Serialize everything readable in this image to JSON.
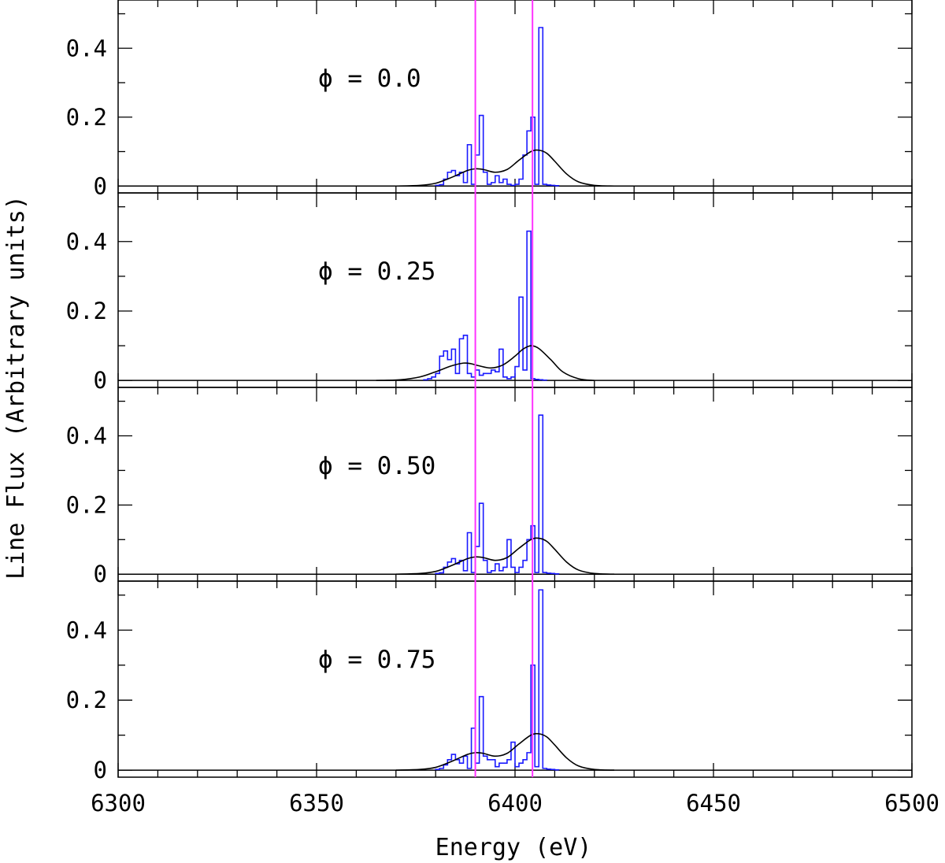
{
  "chart_data": {
    "type": "line",
    "xlabel": "Energy (eV)",
    "ylabel": "Line Flux (Arbitrary units)",
    "xlim": [
      6300,
      6500
    ],
    "ylim": [
      -0.02,
      0.54
    ],
    "x_ticks": [
      "6300",
      "6350",
      "6400",
      "6450",
      "6500"
    ],
    "y_ticks": [
      "0",
      "0.2",
      "0.4"
    ],
    "vertical_lines": [
      6390,
      6404.4
    ],
    "colors": {
      "histogram": "#1a1aff",
      "smoothed": "#000000",
      "vertical_lines": "#ff33ff"
    },
    "panels": [
      {
        "label": "ϕ = 0.0",
        "histogram": {
          "bin_width": 1,
          "x_start": 6380,
          "values": [
            0.002,
            0.004,
            0.02,
            0.04,
            0.045,
            0.03,
            0.04,
            0.01,
            0.12,
            0.005,
            0.09,
            0.205,
            0.04,
            0.005,
            0.01,
            0.03,
            0.01,
            0.02,
            0.005,
            0.002,
            0.005,
            0.02,
            0.09,
            0.16,
            0.2,
            0.005,
            0.46,
            0.005,
            0.003,
            0.002,
            0.001
          ]
        },
        "smoothed": {
          "x": [
            6370,
            6376,
            6380,
            6384,
            6388,
            6390,
            6392,
            6395,
            6398,
            6401,
            6404,
            6406,
            6408,
            6410,
            6413,
            6416,
            6420,
            6425
          ],
          "y": [
            0,
            0.002,
            0.008,
            0.025,
            0.045,
            0.05,
            0.048,
            0.04,
            0.048,
            0.075,
            0.1,
            0.104,
            0.095,
            0.072,
            0.035,
            0.012,
            0.002,
            0
          ]
        }
      },
      {
        "label": "ϕ = 0.25",
        "histogram": {
          "bin_width": 1,
          "x_start": 6377,
          "values": [
            0.002,
            0.005,
            0.01,
            0.02,
            0.07,
            0.085,
            0.06,
            0.09,
            0.02,
            0.12,
            0.13,
            0.02,
            0.01,
            0.03,
            0.015,
            0.02,
            0.02,
            0.03,
            0.025,
            0.09,
            0.01,
            0.005,
            0.01,
            0.04,
            0.24,
            0.03,
            0.43,
            0.005,
            0.003,
            0.002,
            0.001
          ]
        },
        "smoothed": {
          "x": [
            6365,
            6371,
            6376,
            6380,
            6384,
            6387,
            6389,
            6391,
            6394,
            6397,
            6400,
            6402,
            6404,
            6406,
            6409,
            6412,
            6416,
            6420
          ],
          "y": [
            0,
            0.002,
            0.01,
            0.025,
            0.042,
            0.05,
            0.048,
            0.042,
            0.036,
            0.045,
            0.07,
            0.09,
            0.1,
            0.092,
            0.06,
            0.025,
            0.005,
            0
          ]
        }
      },
      {
        "label": "ϕ = 0.50",
        "histogram": {
          "bin_width": 1,
          "x_start": 6380,
          "values": [
            0.002,
            0.004,
            0.02,
            0.035,
            0.045,
            0.03,
            0.04,
            0.01,
            0.12,
            0.005,
            0.08,
            0.205,
            0.04,
            0.005,
            0.01,
            0.03,
            0.01,
            0.02,
            0.1,
            0.02,
            0.005,
            0.02,
            0.04,
            0.1,
            0.14,
            0.005,
            0.46,
            0.005,
            0.003,
            0.002,
            0.001
          ]
        },
        "smoothed": {
          "x": [
            6370,
            6376,
            6380,
            6384,
            6388,
            6390,
            6392,
            6395,
            6398,
            6401,
            6404,
            6406,
            6408,
            6410,
            6413,
            6416,
            6420,
            6425
          ],
          "y": [
            0,
            0.002,
            0.008,
            0.025,
            0.045,
            0.05,
            0.048,
            0.04,
            0.048,
            0.075,
            0.1,
            0.104,
            0.095,
            0.072,
            0.035,
            0.012,
            0.002,
            0
          ]
        }
      },
      {
        "label": "ϕ = 0.75",
        "histogram": {
          "bin_width": 1,
          "x_start": 6380,
          "values": [
            0.002,
            0.005,
            0.015,
            0.03,
            0.045,
            0.03,
            0.02,
            0.04,
            0.005,
            0.12,
            0.02,
            0.21,
            0.04,
            0.03,
            0.03,
            0.01,
            0.02,
            0.02,
            0.03,
            0.08,
            0.01,
            0.02,
            0.03,
            0.05,
            0.3,
            0.01,
            0.515,
            0.005,
            0.003,
            0.002,
            0.001
          ]
        },
        "smoothed": {
          "x": [
            6370,
            6376,
            6380,
            6384,
            6388,
            6390,
            6392,
            6395,
            6398,
            6401,
            6404,
            6406,
            6408,
            6410,
            6413,
            6416,
            6420,
            6425
          ],
          "y": [
            0,
            0.002,
            0.008,
            0.025,
            0.045,
            0.05,
            0.048,
            0.04,
            0.048,
            0.075,
            0.1,
            0.104,
            0.095,
            0.072,
            0.035,
            0.012,
            0.002,
            0
          ]
        }
      }
    ]
  }
}
